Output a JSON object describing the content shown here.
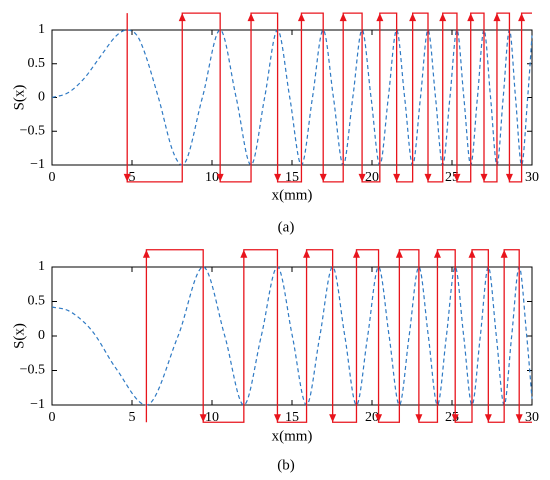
{
  "chart_data": [
    {
      "type": "line",
      "caption": "(a)",
      "x_label": "x(mm)",
      "y_label": "S(x)",
      "xlim": [
        0,
        30
      ],
      "ylim": [
        -1,
        1
      ],
      "xticks": [
        0,
        5,
        10,
        15,
        20,
        25,
        30
      ],
      "yticks": [
        {
          "value": -1,
          "label": "−1"
        },
        {
          "value": -0.5,
          "label": "−0.5"
        },
        0,
        0.5,
        1
      ],
      "series": [
        {
          "color": "#2f7ac4",
          "line_style": "dashed",
          "x": [
            0,
            1,
            2,
            3,
            4,
            4.7,
            5.5,
            6.65,
            7.5,
            8.14,
            9.4,
            10.51,
            11.51,
            12.44,
            13.29,
            14.1,
            14.86,
            15.59,
            16.28,
            16.95,
            17.59,
            18.2,
            18.8,
            19.38,
            19.94,
            20.49,
            21.02,
            21.54,
            22.04,
            22.54,
            23.03,
            23.5,
            23.97,
            24.42,
            24.87,
            25.31,
            25.74,
            26.17,
            26.59,
            27.0,
            27.41,
            27.81,
            28.2,
            28.59,
            28.97,
            29.35,
            29.73,
            30
          ],
          "values": [
            0,
            0.07,
            0.28,
            0.6,
            0.91,
            1,
            0.84,
            0,
            -0.76,
            -1,
            0,
            1,
            0,
            -1,
            0,
            1,
            0,
            -1,
            0,
            1,
            0,
            -1,
            0,
            1,
            0,
            -1,
            0,
            1,
            0,
            -1,
            0,
            1,
            0,
            -1,
            0,
            1,
            0,
            -1,
            0,
            1,
            0,
            -1,
            0,
            1,
            0,
            -1,
            0,
            0.92
          ]
        },
        {
          "color": "#e8141c",
          "line_style": "solid",
          "arrows": true,
          "x": [
            4.7,
            4.7,
            8.14,
            8.14,
            10.51,
            10.51,
            12.44,
            12.44,
            14.1,
            14.1,
            15.59,
            15.59,
            16.95,
            16.95,
            18.2,
            18.2,
            19.38,
            19.38,
            20.49,
            20.49,
            21.54,
            21.54,
            22.54,
            22.54,
            23.5,
            23.5,
            24.42,
            24.42,
            25.31,
            25.31,
            26.17,
            26.17,
            27.0,
            27.0,
            27.81,
            27.81,
            28.59,
            28.59,
            29.35,
            29.35,
            30
          ],
          "values": [
            1.25,
            -1.25,
            -1.25,
            1.25,
            1.25,
            -1.25,
            -1.25,
            1.25,
            1.25,
            -1.25,
            -1.25,
            1.25,
            1.25,
            -1.25,
            -1.25,
            1.25,
            1.25,
            -1.25,
            -1.25,
            1.25,
            1.25,
            -1.25,
            -1.25,
            1.25,
            1.25,
            -1.25,
            -1.25,
            1.25,
            1.25,
            -1.25,
            -1.25,
            1.25,
            1.25,
            -1.25,
            -1.25,
            1.25,
            1.25,
            -1.25,
            -1.25,
            1.25,
            1.25
          ]
        }
      ]
    },
    {
      "type": "line",
      "caption": "(b)",
      "x_label": "x(mm)",
      "y_label": "S(x)",
      "xlim": [
        0,
        30
      ],
      "ylim": [
        -1,
        1
      ],
      "xticks": [
        0,
        5,
        10,
        15,
        20,
        25,
        30
      ],
      "yticks": [
        {
          "value": -1,
          "label": "−1"
        },
        {
          "value": -0.5,
          "label": "−0.5"
        },
        0,
        0.5,
        1
      ],
      "series": [
        {
          "color": "#2f7ac4",
          "line_style": "dashed",
          "x": [
            0,
            1,
            2,
            2.74,
            4,
            5.9,
            7.88,
            9.45,
            10.8,
            11.99,
            13.08,
            14.09,
            15.02,
            15.91,
            16.74,
            17.54,
            18.3,
            19.03,
            19.73,
            20.41,
            21.07,
            21.71,
            22.32,
            22.93,
            23.52,
            24.09,
            24.65,
            25.2,
            25.73,
            26.25,
            26.77,
            27.27,
            27.77,
            28.26,
            28.73,
            29.2,
            29.67,
            30
          ],
          "values": [
            0.42,
            0.37,
            0.2,
            0,
            -0.47,
            -1,
            0,
            1,
            0,
            -1,
            0,
            1,
            0,
            -1,
            0,
            1,
            0,
            -1,
            0,
            1,
            0,
            -1,
            0,
            1,
            0,
            -1,
            0,
            1,
            0,
            -1,
            0,
            1,
            0,
            -1,
            0,
            1,
            0,
            -0.91
          ]
        },
        {
          "color": "#e8141c",
          "line_style": "solid",
          "arrows": true,
          "x": [
            5.9,
            5.9,
            9.45,
            9.45,
            11.99,
            11.99,
            14.09,
            14.09,
            15.91,
            15.91,
            17.54,
            17.54,
            19.03,
            19.03,
            20.41,
            20.41,
            21.71,
            21.71,
            22.93,
            22.93,
            24.09,
            24.09,
            25.2,
            25.2,
            26.25,
            26.25,
            27.27,
            27.27,
            28.26,
            28.26,
            29.2,
            29.2,
            30
          ],
          "values": [
            -1.25,
            1.25,
            1.25,
            -1.25,
            -1.25,
            1.25,
            1.25,
            -1.25,
            -1.25,
            1.25,
            1.25,
            -1.25,
            -1.25,
            1.25,
            1.25,
            -1.25,
            -1.25,
            1.25,
            1.25,
            -1.25,
            -1.25,
            1.25,
            1.25,
            -1.25,
            -1.25,
            1.25,
            1.25,
            -1.25,
            -1.25,
            1.25,
            1.25,
            -1.25,
            -1.25
          ]
        }
      ]
    }
  ]
}
